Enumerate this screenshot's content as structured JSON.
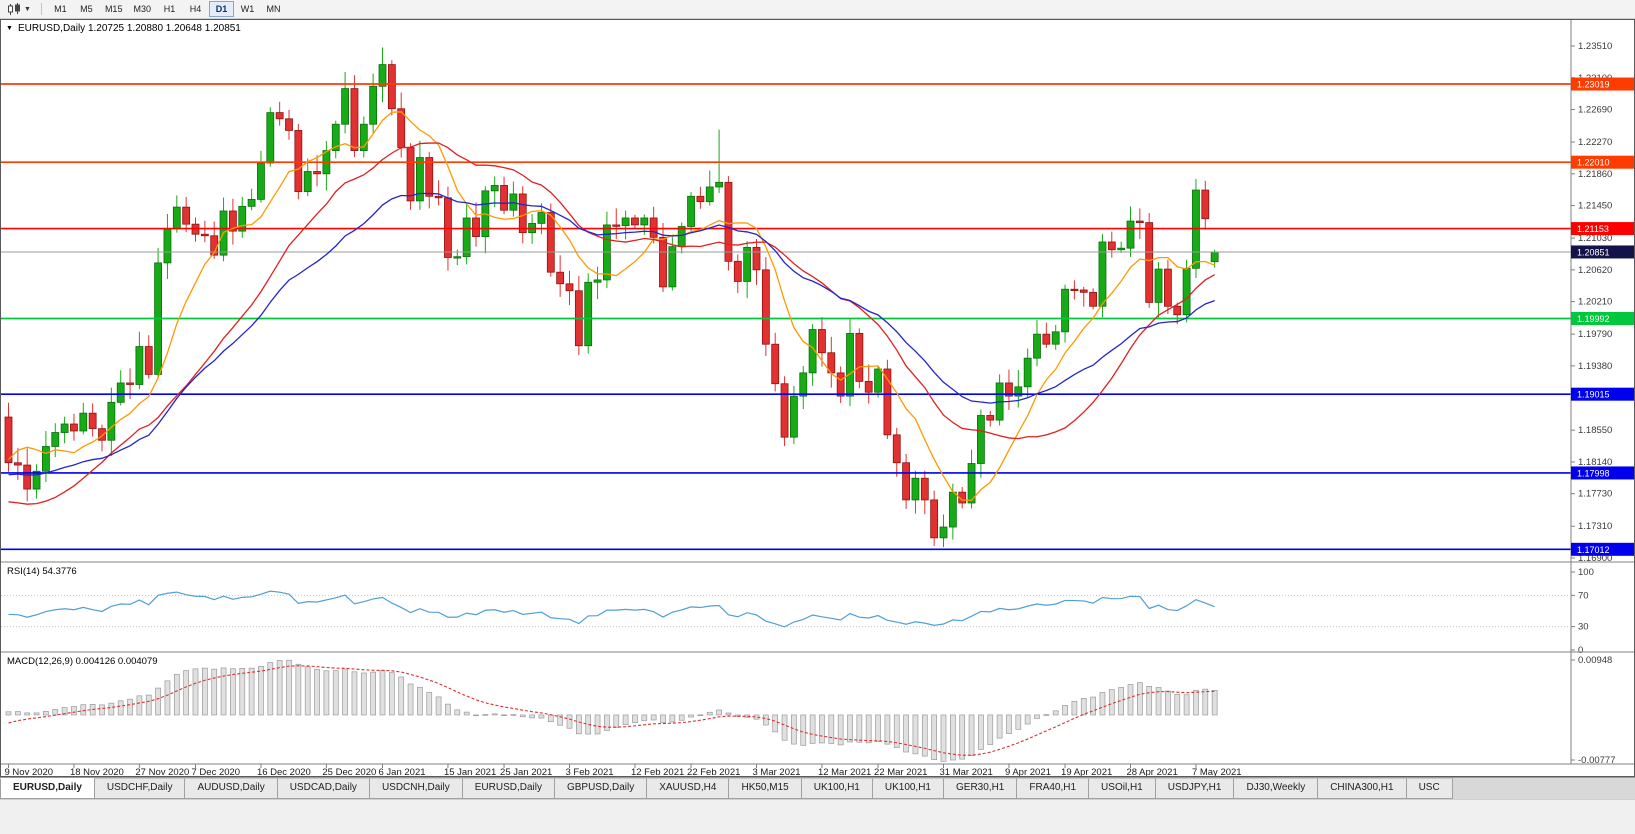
{
  "toolbar": {
    "timeframes": [
      {
        "label": "M1",
        "active": false
      },
      {
        "label": "M5",
        "active": false
      },
      {
        "label": "M15",
        "active": false
      },
      {
        "label": "M30",
        "active": false
      },
      {
        "label": "H1",
        "active": false
      },
      {
        "label": "H4",
        "active": false
      },
      {
        "label": "D1",
        "active": true
      },
      {
        "label": "W1",
        "active": false
      },
      {
        "label": "MN",
        "active": false
      }
    ]
  },
  "chart": {
    "title_marker": "▼",
    "title": "EURUSD,Daily  1.20725 1.20880 1.20648 1.20851"
  },
  "chart_data": {
    "type": "candlestick",
    "symbol": "EURUSD",
    "period": "Daily",
    "current_ohlc": {
      "open": 1.20725,
      "high": 1.2088,
      "low": 1.20648,
      "close": 1.20851
    },
    "price_range": {
      "max": 1.2351,
      "min": 1.169
    },
    "price_axis_labels": [
      "1.23510",
      "1.23100",
      "1.22690",
      "1.22270",
      "1.21860",
      "1.21450",
      "1.21030",
      "1.20620",
      "1.20210",
      "1.19790",
      "1.19380",
      "1.18970",
      "1.18550",
      "1.18140",
      "1.17730",
      "1.17310",
      "1.16900"
    ],
    "pre_closes": [
      1.1861,
      1.1838,
      1.1812,
      1.1788,
      1.177,
      1.1756,
      1.1722,
      1.1698,
      1.1679,
      1.1647,
      1.1641,
      1.165,
      1.1712,
      1.1716,
      1.1747,
      1.1828,
      1.1872,
      1.1815,
      1.1875,
      1.1872
    ],
    "closes": [
      1.1813,
      1.181,
      1.1779,
      1.1802,
      1.1834,
      1.1852,
      1.1863,
      1.1854,
      1.1877,
      1.1857,
      1.1842,
      1.1891,
      1.1916,
      1.1914,
      1.1963,
      1.1927,
      1.2071,
      1.2115,
      1.2143,
      1.2121,
      1.2108,
      1.2106,
      1.2081,
      1.2138,
      1.2112,
      1.2144,
      1.2153,
      1.22,
      1.2265,
      1.2257,
      1.2242,
      1.2163,
      1.2189,
      1.2186,
      1.2216,
      1.225,
      1.2296,
      1.2216,
      1.225,
      1.2299,
      1.2327,
      1.227,
      1.222,
      1.2151,
      1.2207,
      1.2157,
      1.2155,
      1.2078,
      1.2079,
      1.2129,
      1.2105,
      1.2164,
      1.2171,
      1.2139,
      1.216,
      1.211,
      1.2122,
      1.2136,
      1.2059,
      1.2044,
      1.2035,
      1.1964,
      1.2046,
      1.2049,
      1.212,
      1.2119,
      1.2129,
      1.212,
      1.2129,
      1.2104,
      1.204,
      1.2092,
      1.2118,
      1.2157,
      1.215,
      1.2169,
      1.2175,
      1.2073,
      1.2047,
      1.2091,
      1.2062,
      1.1966,
      1.1915,
      1.1846,
      1.1899,
      1.1929,
      1.1985,
      1.1955,
      1.1929,
      1.1899,
      1.198,
      1.1918,
      1.1904,
      1.1934,
      1.1849,
      1.1813,
      1.1765,
      1.1793,
      1.1765,
      1.1716,
      1.173,
      1.1775,
      1.1761,
      1.1812,
      1.1874,
      1.1868,
      1.1916,
      1.1899,
      1.1911,
      1.1948,
      1.1979,
      1.1966,
      1.1982,
      1.2037,
      1.2036,
      1.2033,
      1.2015,
      1.2098,
      1.2088,
      1.209,
      1.2125,
      1.2123,
      1.202,
      1.2063,
      1.2015,
      1.2004,
      1.2064,
      1.2165,
      1.2128,
      1.20851
    ],
    "overrides": {
      "16": {
        "low": 1.1923
      },
      "40": {
        "high": 1.2349
      },
      "47": {
        "low": 1.2061
      },
      "61": {
        "low": 1.1952
      },
      "76": {
        "high": 1.2243
      },
      "100": {
        "low": 1.1704
      },
      "122": {
        "low": 1.2013
      },
      "128": {
        "high": 1.2177
      },
      "129": {
        "open": 1.20725,
        "high": 1.2088,
        "low": 1.20648,
        "close": 1.20851
      }
    },
    "date_labels": [
      {
        "label": "9 Nov 2020",
        "i": 0
      },
      {
        "label": "18 Nov 2020",
        "i": 7
      },
      {
        "label": "27 Nov 2020",
        "i": 14
      },
      {
        "label": "7 Dec 2020",
        "i": 20
      },
      {
        "label": "16 Dec 2020",
        "i": 27
      },
      {
        "label": "25 Dec 2020",
        "i": 34
      },
      {
        "label": "6 Jan 2021",
        "i": 40
      },
      {
        "label": "15 Jan 2021",
        "i": 47
      },
      {
        "label": "25 Jan 2021",
        "i": 53
      },
      {
        "label": "3 Feb 2021",
        "i": 60
      },
      {
        "label": "12 Feb 2021",
        "i": 67
      },
      {
        "label": "22 Feb 2021",
        "i": 73
      },
      {
        "label": "3 Mar 2021",
        "i": 80
      },
      {
        "label": "12 Mar 2021",
        "i": 87
      },
      {
        "label": "22 Mar 2021",
        "i": 93
      },
      {
        "label": "31 Mar 2021",
        "i": 100
      },
      {
        "label": "9 Apr 2021",
        "i": 107
      },
      {
        "label": "19 Apr 2021",
        "i": 113
      },
      {
        "label": "28 Apr 2021",
        "i": 120
      },
      {
        "label": "7 May 2021",
        "i": 127
      }
    ],
    "hlines": [
      {
        "price": 1.23019,
        "label": "1.23019",
        "color": "#ff3c00"
      },
      {
        "price": 1.2201,
        "label": "1.22010",
        "color": "#ff3c00"
      },
      {
        "price": 1.21153,
        "label": "1.21153",
        "color": "#ff0000"
      },
      {
        "price": 1.19992,
        "label": "1.19992",
        "color": "#00c73c"
      },
      {
        "price": 1.19015,
        "label": "1.19015",
        "color": "#0000ee"
      },
      {
        "price": 1.17998,
        "label": "1.17998",
        "color": "#0000ee"
      },
      {
        "price": 1.17012,
        "label": "1.17012",
        "color": "#0000ee"
      }
    ],
    "current_price": {
      "value": 1.20851,
      "label": "1.20851",
      "box_color": "#13134a",
      "line_color": "#9a9a9a"
    },
    "moving_averages": [
      {
        "method": "sma",
        "period": 8,
        "color": "#ff9900"
      },
      {
        "method": "sma",
        "period": 20,
        "color": "#e02020"
      },
      {
        "method": "ema",
        "period": 30,
        "color": "#2424cc"
      }
    ],
    "candle_colors": {
      "up": "#17ab17",
      "up_stroke": "#0b6e0b",
      "down": "#e23131",
      "down_stroke": "#8f1212"
    },
    "rsi": {
      "label": "RSI(14) 54.3776",
      "period": 14,
      "current": 54.3776,
      "axis_labels": [
        "100",
        "70",
        "30",
        "0"
      ],
      "guide_levels": [
        70,
        30
      ],
      "color": "#4f9fd8"
    },
    "macd": {
      "label": "MACD(12,26,9) 0.004126 0.004079",
      "fast": 12,
      "slow": 26,
      "signal_period": 9,
      "current_macd": 0.004126,
      "current_signal": 0.004079,
      "axis_top_label": "0.00948",
      "axis_bottom_label": "-0.00777",
      "range": {
        "max": 0.00948,
        "min": -0.00777
      },
      "hist_fill": "#e0e0e0",
      "hist_stroke": "#9a9a9a",
      "signal_color": "#e03030"
    }
  },
  "tabs": {
    "items": [
      {
        "label": "EURUSD,Daily",
        "active": true
      },
      {
        "label": "USDCHF,Daily",
        "active": false
      },
      {
        "label": "AUDUSD,Daily",
        "active": false
      },
      {
        "label": "USDCAD,Daily",
        "active": false
      },
      {
        "label": "USDCNH,Daily",
        "active": false
      },
      {
        "label": "EURUSD,Daily",
        "active": false
      },
      {
        "label": "GBPUSD,Daily",
        "active": false
      },
      {
        "label": "XAUUSD,H4",
        "active": false
      },
      {
        "label": "HK50,M15",
        "active": false
      },
      {
        "label": "UK100,H1",
        "active": false
      },
      {
        "label": "UK100,H1",
        "active": false
      },
      {
        "label": "GER30,H1",
        "active": false
      },
      {
        "label": "FRA40,H1",
        "active": false
      },
      {
        "label": "USOil,H1",
        "active": false
      },
      {
        "label": "USDJPY,H1",
        "active": false
      },
      {
        "label": "DJ30,Weekly",
        "active": false
      },
      {
        "label": "CHINA300,H1",
        "active": false
      },
      {
        "label": "USC",
        "active": false
      }
    ]
  }
}
